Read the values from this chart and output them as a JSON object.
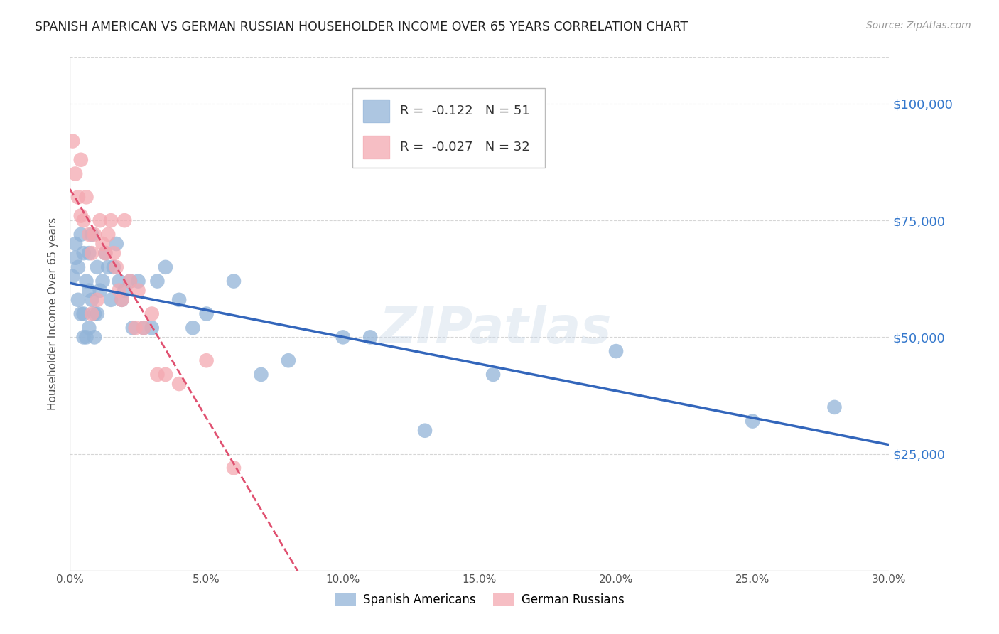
{
  "title": "SPANISH AMERICAN VS GERMAN RUSSIAN HOUSEHOLDER INCOME OVER 65 YEARS CORRELATION CHART",
  "source": "Source: ZipAtlas.com",
  "ylabel": "Householder Income Over 65 years",
  "watermark": "ZIPatlas",
  "ylim": [
    0,
    110000
  ],
  "xlim": [
    0.0,
    0.3
  ],
  "yticks": [
    0,
    25000,
    50000,
    75000,
    100000
  ],
  "ytick_labels": [
    "",
    "$25,000",
    "$50,000",
    "$75,000",
    "$100,000"
  ],
  "xticks": [
    0.0,
    0.05,
    0.1,
    0.15,
    0.2,
    0.25,
    0.3
  ],
  "legend_blue_r": "-0.122",
  "legend_blue_n": "51",
  "legend_pink_r": "-0.027",
  "legend_pink_n": "32",
  "blue_color": "#92B4D8",
  "pink_color": "#F4A8B0",
  "blue_line_color": "#3366BB",
  "pink_line_color": "#E05070",
  "title_color": "#222222",
  "source_color": "#999999",
  "axis_label_color": "#3377CC",
  "grid_color": "#CCCCCC",
  "bg_color": "#FFFFFF",
  "spanish_americans_x": [
    0.001,
    0.002,
    0.002,
    0.003,
    0.003,
    0.004,
    0.004,
    0.005,
    0.005,
    0.005,
    0.006,
    0.006,
    0.007,
    0.007,
    0.007,
    0.008,
    0.008,
    0.009,
    0.009,
    0.01,
    0.01,
    0.011,
    0.012,
    0.013,
    0.014,
    0.015,
    0.016,
    0.017,
    0.018,
    0.019,
    0.02,
    0.022,
    0.023,
    0.025,
    0.027,
    0.03,
    0.032,
    0.035,
    0.04,
    0.045,
    0.05,
    0.06,
    0.07,
    0.08,
    0.1,
    0.11,
    0.13,
    0.155,
    0.2,
    0.25,
    0.28
  ],
  "spanish_americans_y": [
    63000,
    70000,
    67000,
    65000,
    58000,
    72000,
    55000,
    68000,
    55000,
    50000,
    62000,
    50000,
    68000,
    60000,
    52000,
    72000,
    58000,
    55000,
    50000,
    65000,
    55000,
    60000,
    62000,
    68000,
    65000,
    58000,
    65000,
    70000,
    62000,
    58000,
    60000,
    62000,
    52000,
    62000,
    52000,
    52000,
    62000,
    65000,
    58000,
    52000,
    55000,
    62000,
    42000,
    45000,
    50000,
    50000,
    30000,
    42000,
    47000,
    32000,
    35000
  ],
  "german_russians_x": [
    0.001,
    0.002,
    0.003,
    0.004,
    0.004,
    0.005,
    0.006,
    0.007,
    0.008,
    0.008,
    0.009,
    0.01,
    0.011,
    0.012,
    0.013,
    0.014,
    0.015,
    0.016,
    0.017,
    0.018,
    0.019,
    0.02,
    0.022,
    0.024,
    0.025,
    0.027,
    0.03,
    0.032,
    0.035,
    0.04,
    0.05,
    0.06
  ],
  "german_russians_y": [
    92000,
    85000,
    80000,
    88000,
    76000,
    75000,
    80000,
    72000,
    68000,
    55000,
    72000,
    58000,
    75000,
    70000,
    68000,
    72000,
    75000,
    68000,
    65000,
    60000,
    58000,
    75000,
    62000,
    52000,
    60000,
    52000,
    55000,
    42000,
    42000,
    40000,
    45000,
    22000
  ]
}
